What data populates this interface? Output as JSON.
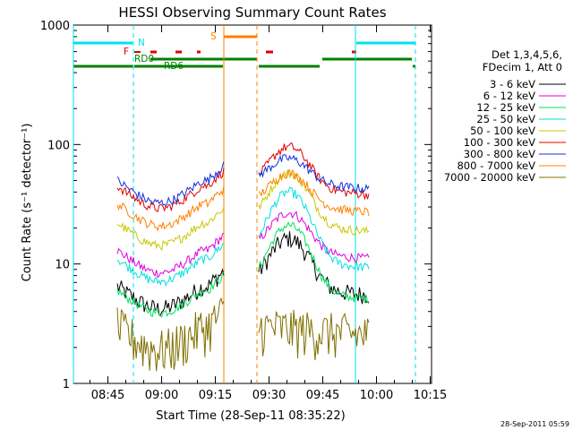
{
  "chart_data": {
    "type": "line",
    "title": "HESSI Observing Summary Count Rates",
    "xlabel": "Start Time (28-Sep-11 08:35:22)",
    "ylabel": "Count Rate (s⁻¹ detector⁻¹)",
    "ylog": true,
    "ylim": [
      1,
      1000
    ],
    "xlim_minutes": [
      0,
      100
    ],
    "y_ticks": [
      "1",
      "10",
      "100",
      "1000"
    ],
    "x_ticks": [
      {
        "label": "08:45",
        "minute": 9.63
      },
      {
        "label": "09:00",
        "minute": 24.63
      },
      {
        "label": "09:15",
        "minute": 39.63
      },
      {
        "label": "09:30",
        "minute": 54.63
      },
      {
        "label": "09:45",
        "minute": 69.63
      },
      {
        "label": "10:00",
        "minute": 84.63
      },
      {
        "label": "10:15",
        "minute": 99.63
      }
    ],
    "legend_header": [
      "Det 1,3,4,5,6,",
      "FDecim 1, Att 0"
    ],
    "legend_placement": "right",
    "timestamp": "28-Sep-2011 05:59",
    "series": [
      {
        "name": "3 - 6 keV",
        "color": "#000000",
        "base": 6.5,
        "peak2": 17
      },
      {
        "name": "6 - 12 keV",
        "color": "#e000e0",
        "base": 13,
        "peak2": 28
      },
      {
        "name": "12 - 25 keV",
        "color": "#00e060",
        "base": 6,
        "peak2": 22
      },
      {
        "name": "25 - 50 keV",
        "color": "#00e0e0",
        "base": 11,
        "peak2": 42
      },
      {
        "name": "50 - 100 keV",
        "color": "#c8c800",
        "base": 22,
        "peak2": 60
      },
      {
        "name": "100 - 300 keV",
        "color": "#e00000",
        "base": 45,
        "peak2": 100
      },
      {
        "name": "300 - 800 keV",
        "color": "#1030e0",
        "base": 50,
        "peak2": 80
      },
      {
        "name": "800 - 7000 keV",
        "color": "#ff8000",
        "base": 32,
        "peak2": 60
      },
      {
        "name": "7000 - 20000 keV",
        "color": "#807000",
        "base": 3,
        "peak2": 3
      }
    ],
    "flags": [
      {
        "label": "N",
        "color": "#00e0f0"
      },
      {
        "label": "F",
        "color": "#e00000"
      },
      {
        "label": "S",
        "color": "#ff8000"
      },
      {
        "label": "RD0",
        "color": "#008000"
      },
      {
        "label": "RD6",
        "color": "#008000"
      }
    ]
  }
}
